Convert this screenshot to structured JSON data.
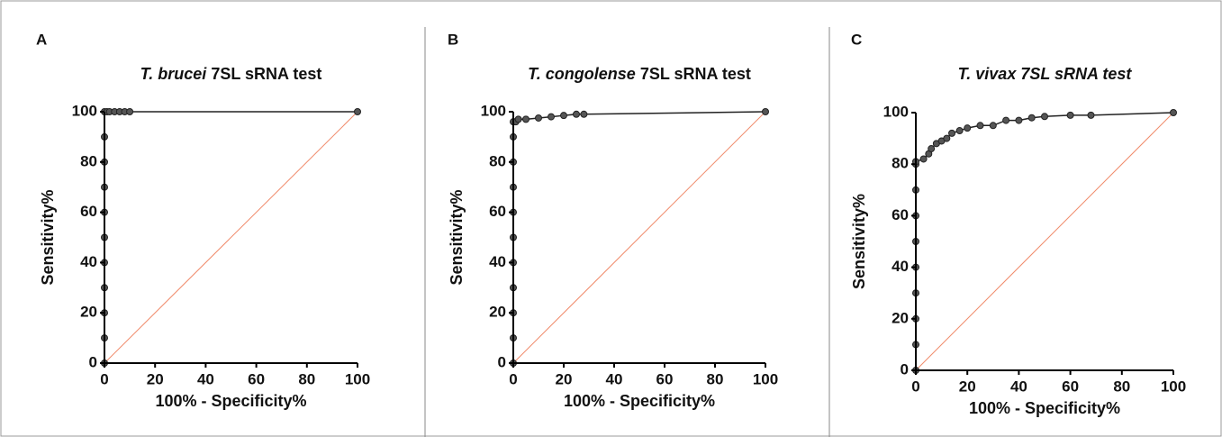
{
  "chart_data": [
    {
      "type": "line",
      "panel": "A",
      "title": [
        "T. brucei",
        "7SL sRNA test"
      ],
      "title_italic": [
        true,
        false
      ],
      "x_label": "100% - Specificity%",
      "y_label": "Sensitivity%",
      "x": [
        0,
        0,
        0,
        0,
        0,
        0,
        0,
        0,
        0,
        0,
        0,
        1,
        2,
        4,
        6,
        8,
        10,
        100
      ],
      "values": [
        0,
        10,
        20,
        30,
        40,
        50,
        60,
        70,
        80,
        90,
        100,
        100,
        100,
        100,
        100,
        100,
        100,
        100
      ],
      "color": "#222222",
      "marker_color": "#555555",
      "reference": {
        "x": [
          0,
          100
        ],
        "values": [
          0,
          100
        ],
        "color": "#f08a6a"
      },
      "xlim": [
        0,
        100
      ],
      "ylim": [
        0,
        100
      ],
      "xticks": [
        0,
        20,
        40,
        60,
        80,
        100
      ],
      "yticks": [
        0,
        20,
        40,
        60,
        80,
        100
      ]
    },
    {
      "type": "line",
      "panel": "B",
      "title": [
        "T. congolense",
        "7SL sRNA test"
      ],
      "title_italic": [
        true,
        false
      ],
      "x_label": "100% - Specificity%",
      "y_label": "Sensitivity%",
      "x": [
        0,
        0,
        0,
        0,
        0,
        0,
        0,
        0,
        0,
        0,
        0,
        1,
        2,
        5,
        10,
        15,
        20,
        25,
        28,
        100
      ],
      "values": [
        0,
        10,
        20,
        30,
        40,
        50,
        60,
        70,
        80,
        90,
        96,
        96,
        97,
        97,
        97.5,
        98,
        98.5,
        99,
        99,
        100
      ],
      "color": "#222222",
      "marker_color": "#555555",
      "reference": {
        "x": [
          0,
          100
        ],
        "values": [
          0,
          100
        ],
        "color": "#f08a6a"
      },
      "xlim": [
        0,
        100
      ],
      "ylim": [
        0,
        100
      ],
      "xticks": [
        0,
        20,
        40,
        60,
        80,
        100
      ],
      "yticks": [
        0,
        20,
        40,
        60,
        80,
        100
      ]
    },
    {
      "type": "line",
      "panel": "C",
      "title": [
        "T. vivax 7SL sRNA test"
      ],
      "title_italic": [
        true
      ],
      "x_label": "100% - Specificity%",
      "y_label": "Sensitivity%",
      "x": [
        0,
        0,
        0,
        0,
        0,
        0,
        0,
        0,
        0,
        0,
        3,
        5,
        6,
        8,
        10,
        12,
        14,
        17,
        20,
        25,
        30,
        35,
        40,
        45,
        50,
        60,
        68,
        100
      ],
      "values": [
        0,
        10,
        20,
        30,
        40,
        50,
        60,
        70,
        80,
        81,
        82,
        84,
        86,
        88,
        89,
        90,
        92,
        93,
        94,
        95,
        95,
        97,
        97,
        98,
        98.5,
        99,
        99,
        100
      ],
      "color": "#222222",
      "marker_color": "#555555",
      "reference": {
        "x": [
          0,
          100
        ],
        "values": [
          0,
          100
        ],
        "color": "#f08a6a"
      },
      "xlim": [
        0,
        100
      ],
      "ylim": [
        0,
        100
      ],
      "xticks": [
        0,
        20,
        40,
        60,
        80,
        100
      ],
      "yticks": [
        0,
        20,
        40,
        60,
        80,
        100
      ]
    }
  ]
}
